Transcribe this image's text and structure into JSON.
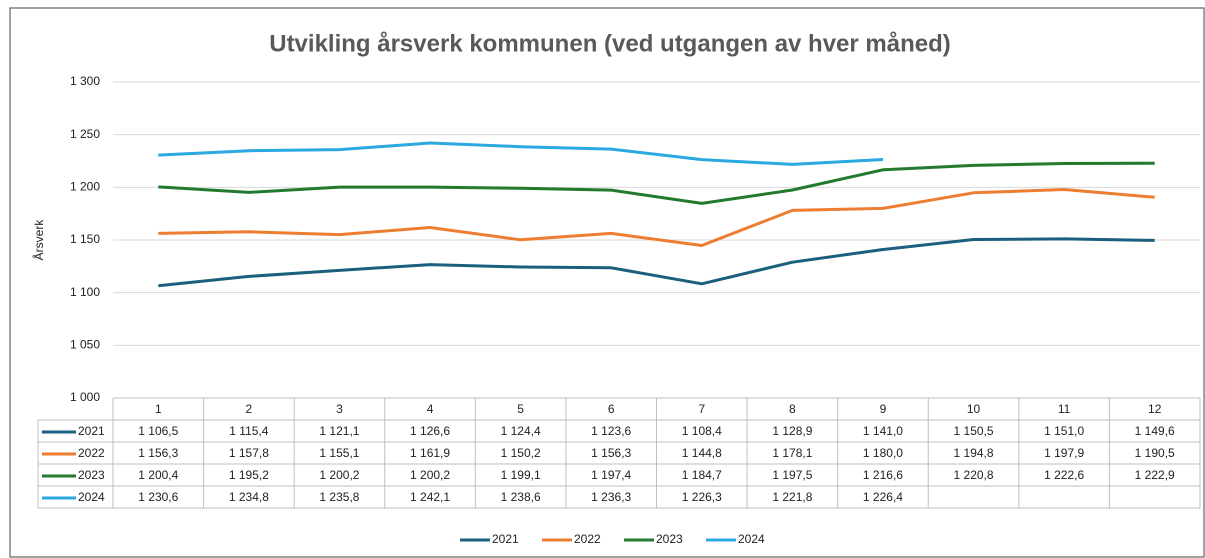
{
  "chart_data": {
    "type": "line",
    "title": "Utvikling årsverk kommunen (ved utgangen av hver måned)",
    "y_label": "Årsverk",
    "categories": [
      "1",
      "2",
      "3",
      "4",
      "5",
      "6",
      "7",
      "8",
      "9",
      "10",
      "11",
      "12"
    ],
    "ylim": [
      1000,
      1300
    ],
    "yticks": [
      {
        "value": 1000,
        "label": "1 000"
      },
      {
        "value": 1050,
        "label": "1 050"
      },
      {
        "value": 1100,
        "label": "1 100"
      },
      {
        "value": 1150,
        "label": "1 150"
      },
      {
        "value": 1200,
        "label": "1 200"
      },
      {
        "value": 1250,
        "label": "1 250"
      },
      {
        "value": 1300,
        "label": "1 300"
      }
    ],
    "grid": true,
    "legend": "bottom",
    "series": [
      {
        "name": "2021",
        "color": "#1b5f7f",
        "values": [
          1106.5,
          1115.4,
          1121.1,
          1126.6,
          1124.4,
          1123.6,
          1108.4,
          1128.9,
          1141.0,
          1150.5,
          1151.0,
          1149.6
        ],
        "value_labels": [
          "1 106,5",
          "1 115,4",
          "1 121,1",
          "1 126,6",
          "1 124,4",
          "1 123,6",
          "1 108,4",
          "1 128,9",
          "1 141,0",
          "1 150,5",
          "1 151,0",
          "1 149,6"
        ]
      },
      {
        "name": "2022",
        "color": "#ed7d31",
        "values": [
          1156.3,
          1157.8,
          1155.1,
          1161.9,
          1150.2,
          1156.3,
          1144.8,
          1178.1,
          1180.0,
          1194.8,
          1197.9,
          1190.5
        ],
        "value_labels": [
          "1 156,3",
          "1 157,8",
          "1 155,1",
          "1 161,9",
          "1 150,2",
          "1 156,3",
          "1 144,8",
          "1 178,1",
          "1 180,0",
          "1 194,8",
          "1 197,9",
          "1 190,5"
        ]
      },
      {
        "name": "2023",
        "color": "#237a2f",
        "values": [
          1200.4,
          1195.2,
          1200.2,
          1200.2,
          1199.1,
          1197.4,
          1184.7,
          1197.5,
          1216.6,
          1220.8,
          1222.6,
          1222.9
        ],
        "value_labels": [
          "1 200,4",
          "1 195,2",
          "1 200,2",
          "1 200,2",
          "1 199,1",
          "1 197,4",
          "1 184,7",
          "1 197,5",
          "1 216,6",
          "1 220,8",
          "1 222,6",
          "1 222,9"
        ]
      },
      {
        "name": "2024",
        "color": "#2aa8df",
        "values": [
          1230.6,
          1234.8,
          1235.8,
          1242.1,
          1238.6,
          1236.3,
          1226.3,
          1221.8,
          1226.4,
          null,
          null,
          null
        ],
        "value_labels": [
          "1 230,6",
          "1 234,8",
          "1 235,8",
          "1 242,1",
          "1 238,6",
          "1 236,3",
          "1 226,3",
          "1 221,8",
          "1 226,4",
          null,
          null,
          null
        ]
      }
    ]
  }
}
